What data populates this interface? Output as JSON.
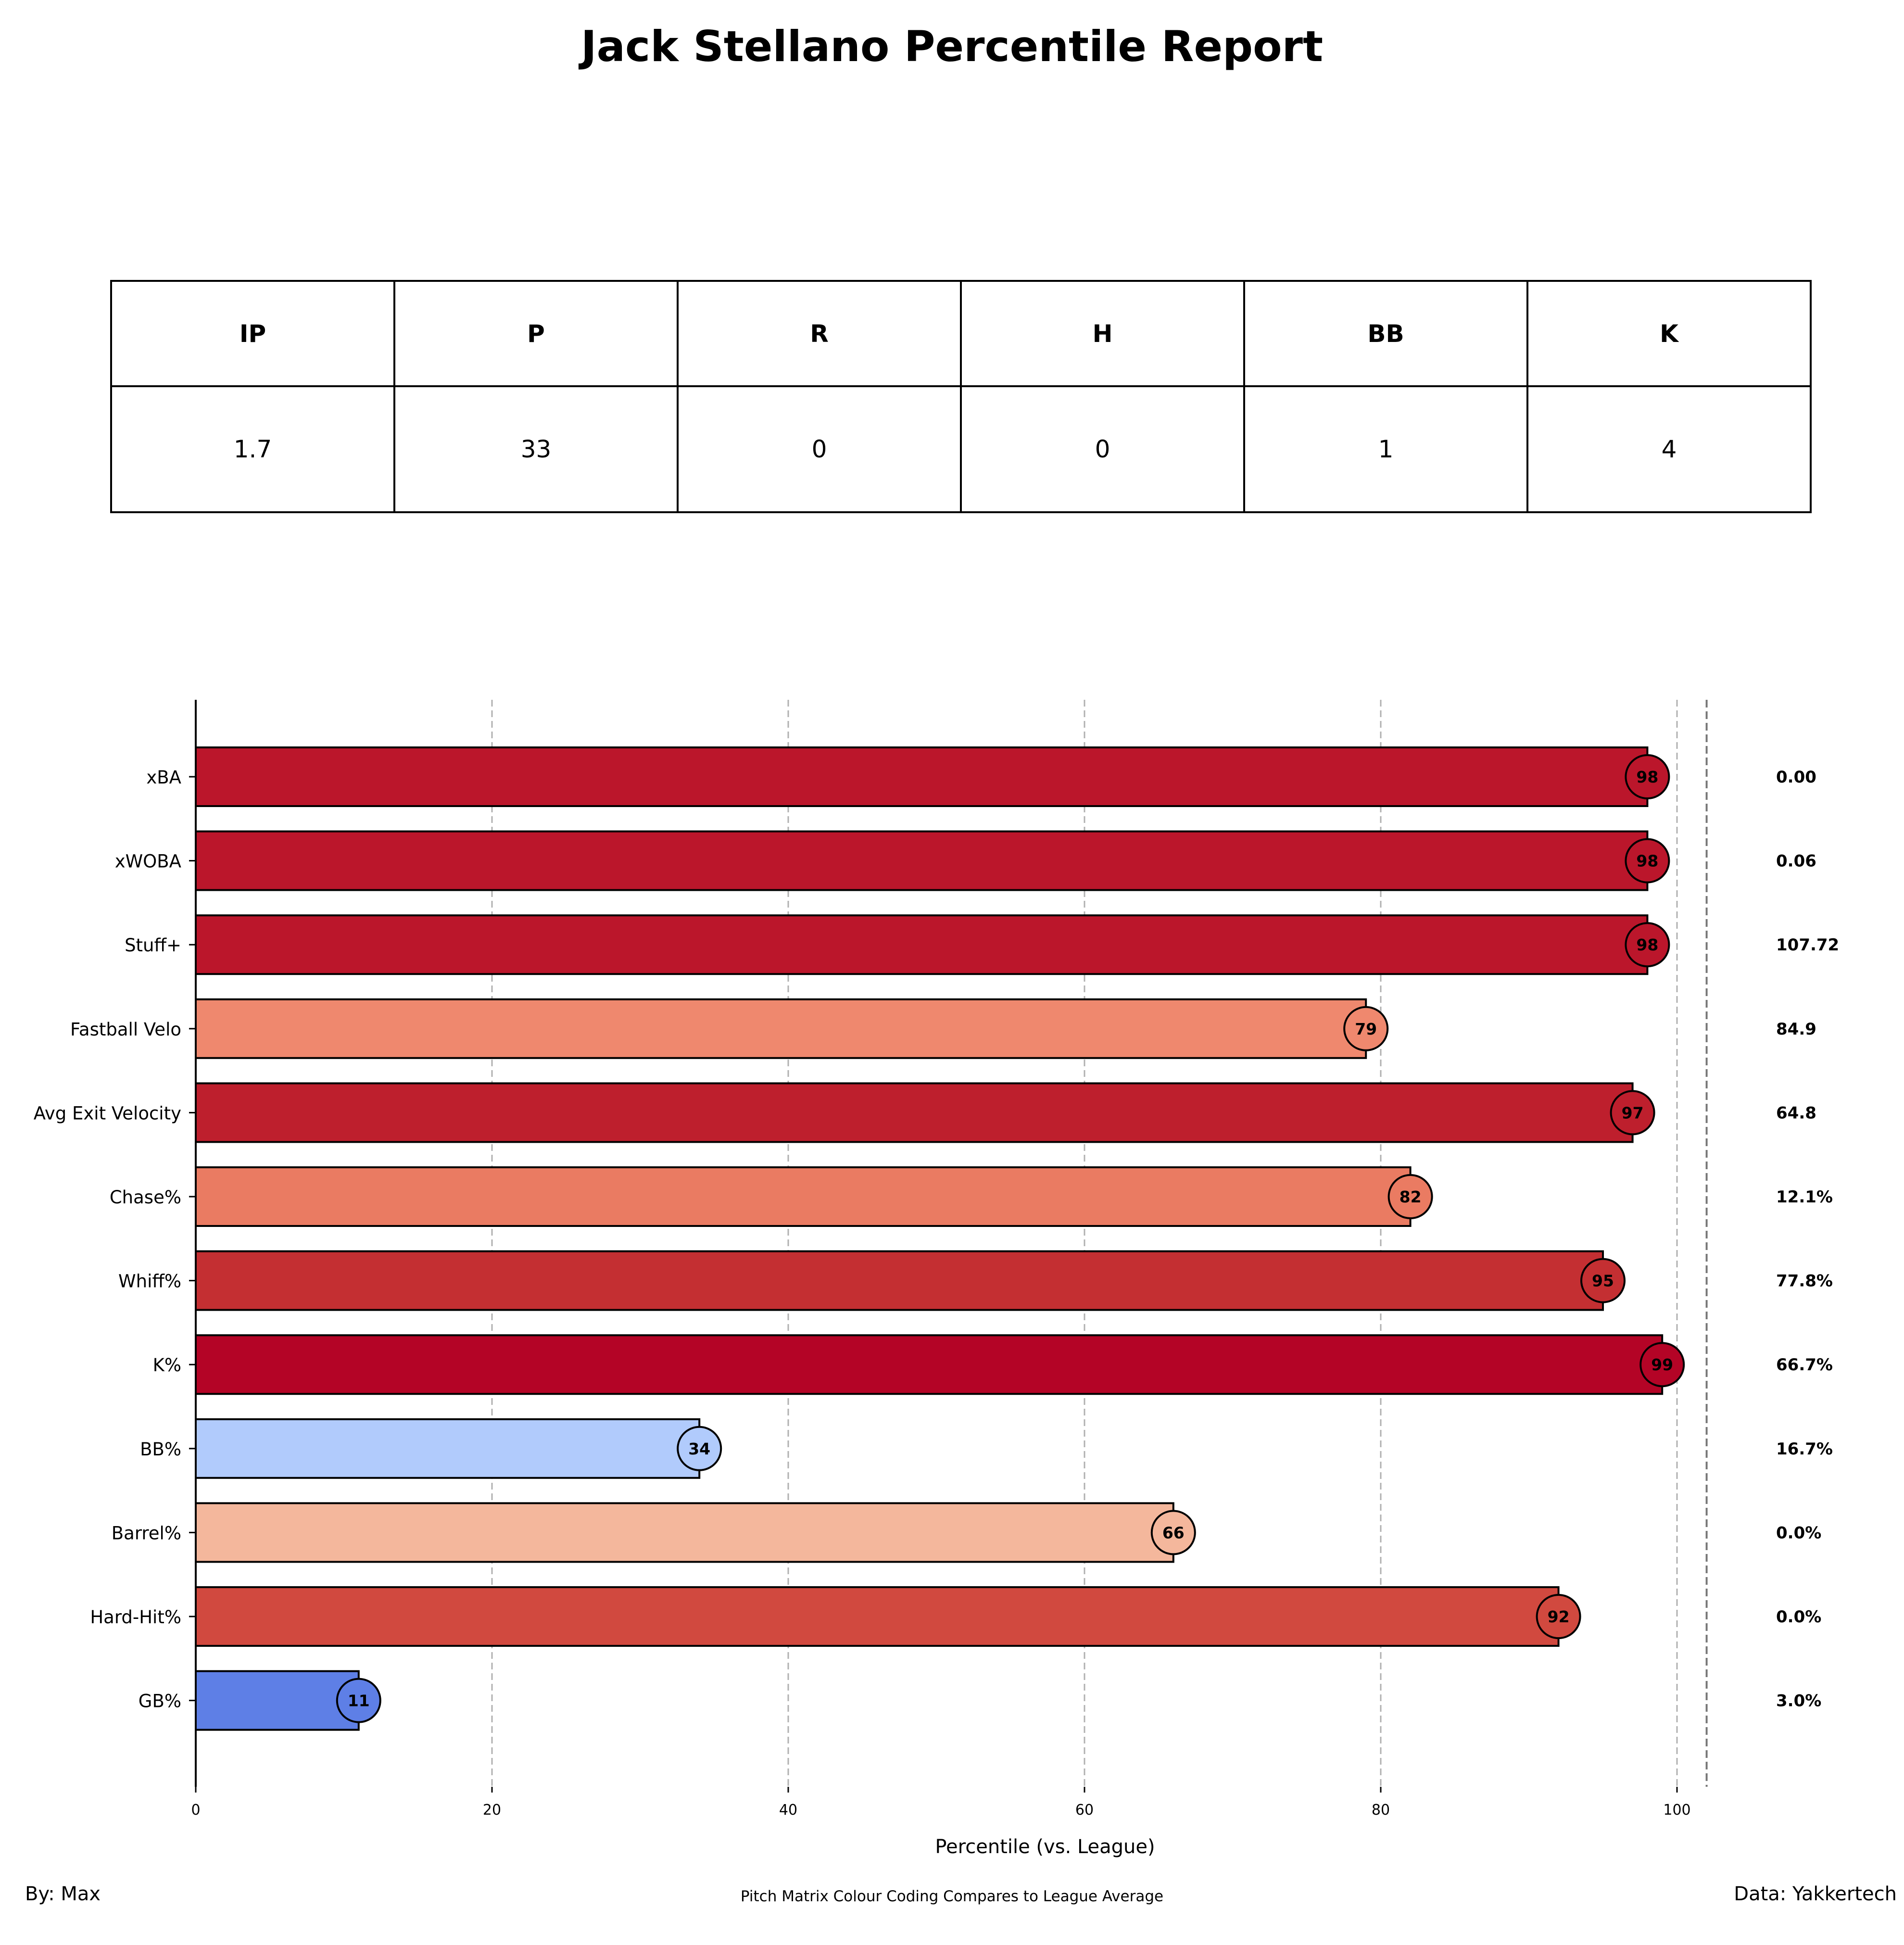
{
  "title": "Jack Stellano Percentile Report",
  "stats": {
    "headers": [
      "IP",
      "P",
      "R",
      "H",
      "BB",
      "K"
    ],
    "values": [
      "1.7",
      "33",
      "0",
      "0",
      "1",
      "4"
    ]
  },
  "chart_data": {
    "type": "bar",
    "orientation": "horizontal",
    "xlabel": "Percentile (vs. League)",
    "xlim": [
      0,
      102
    ],
    "xticks": [
      0,
      20,
      40,
      60,
      80,
      100
    ],
    "grid": "vertical dashed",
    "reference_line": 102,
    "categories": [
      "xBA",
      "xWOBA",
      "Stuff+",
      "Fastball Velo",
      "Avg Exit Velocity",
      "Chase%",
      "Whiff%",
      "K%",
      "BB%",
      "Barrel%",
      "Hard-Hit%",
      "GB%"
    ],
    "values": [
      98,
      98,
      98,
      79,
      97,
      82,
      95,
      99,
      34,
      66,
      92,
      11
    ],
    "raw_values": [
      "0.00",
      "0.06",
      "107.72",
      "84.9",
      "64.8",
      "12.1%",
      "77.8%",
      "66.7%",
      "16.7%",
      "0.0%",
      "0.0%",
      "3.0%"
    ],
    "colors": [
      "#bb162b",
      "#bb162b",
      "#bb162b",
      "#ef886e",
      "#be1f2d",
      "#ea7b62",
      "#c42f32",
      "#b40426",
      "#b1cbfc",
      "#f4b79c",
      "#d1493f",
      "#5e7fe6"
    ]
  },
  "footer": {
    "left": "By: Max",
    "center": "Pitch Matrix Colour Coding Compares to League Average",
    "right": "Data: Yakkertech"
  }
}
